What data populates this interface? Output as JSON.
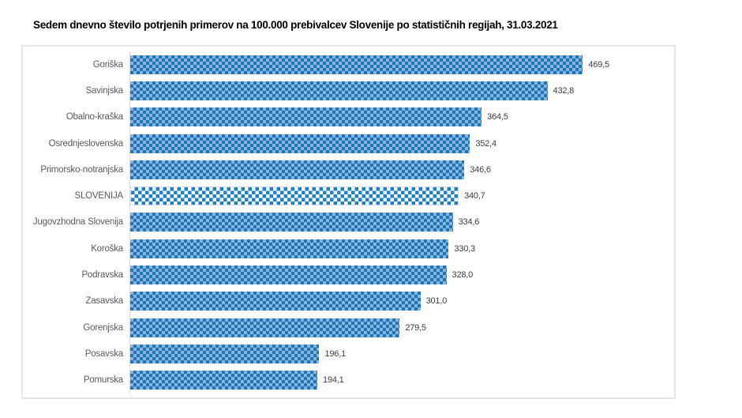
{
  "chart_data": {
    "type": "bar",
    "orientation": "horizontal",
    "title": "Sedem dnevno število potrjenih primerov na 100.000  prebivalcev Slovenije po statističnih regijah, 31.03.2021",
    "xlabel": "",
    "ylabel": "",
    "xlim": [
      0,
      556
    ],
    "grid": false,
    "legend": "none",
    "categories": [
      "Goriška",
      "Savinjska",
      "Obalno-kraška",
      "Osrednjeslovenska",
      "Primorsko-notranjska",
      "SLOVENIJA",
      "Jugovzhodna Slovenija",
      "Koroška",
      "Podravska",
      "Zasavska",
      "Gorenjska",
      "Posavska",
      "Pomurska"
    ],
    "values": [
      469.5,
      432.8,
      364.5,
      352.4,
      346.6,
      340.7,
      334.6,
      330.3,
      328.0,
      301.0,
      279.5,
      196.1,
      194.1
    ],
    "value_labels": [
      "469,5",
      "432,8",
      "364,5",
      "352,4",
      "346,6",
      "340,7",
      "334,6",
      "330,3",
      "328,0",
      "301,0",
      "279,5",
      "196,1",
      "194,1"
    ],
    "highlight_category": "SLOVENIJA",
    "colors": {
      "bar_pattern_dark": "#1878be",
      "bar_pattern_light": "#8fb2d9",
      "highlight_background": "#ffffff",
      "frame_border": "#e6e6e6",
      "axis_line": "#d9d9d9",
      "category_text": "#595959",
      "value_text": "#3b3b3b",
      "title_text": "#000000"
    }
  }
}
